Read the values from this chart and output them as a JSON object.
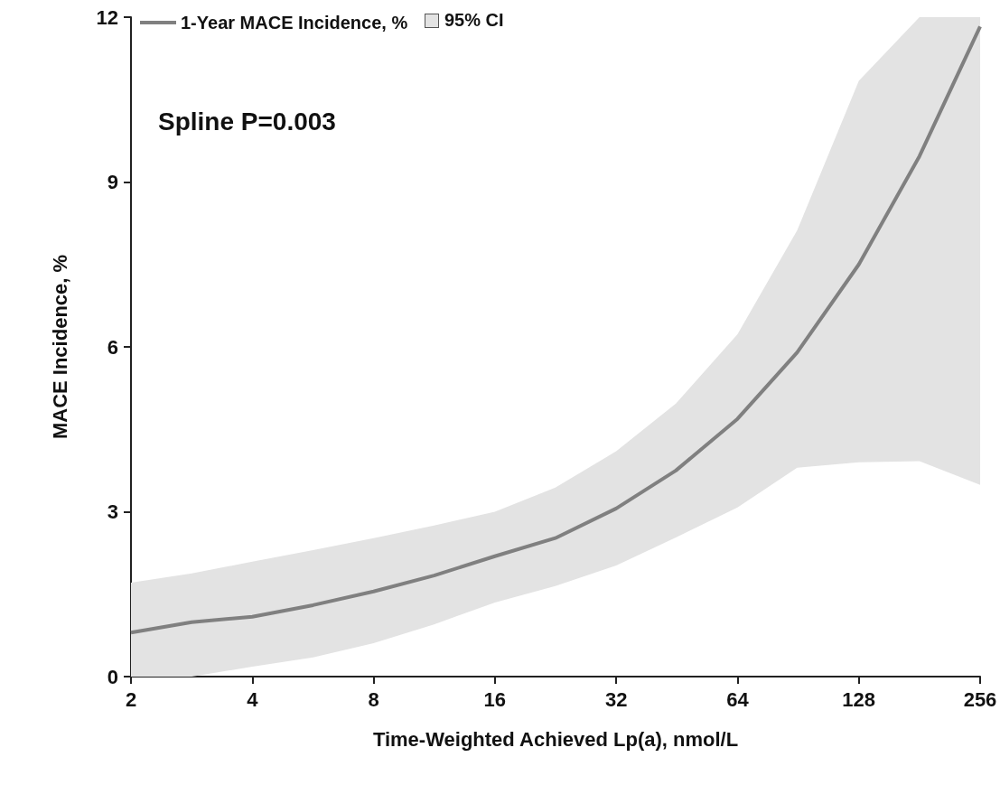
{
  "chart_data": {
    "type": "line",
    "xlabel": "Time-Weighted Achieved Lp(a), nmol/L",
    "ylabel": "MACE Incidence, %",
    "log": "x",
    "xlim": [
      2,
      256
    ],
    "xticks": [
      2,
      4,
      8,
      16,
      32,
      64,
      128,
      256
    ],
    "ylim": [
      0,
      12
    ],
    "yticks": [
      0,
      3,
      6,
      9,
      12
    ],
    "annotations": [
      "Spline P=0.003",
      "95% CI"
    ],
    "legend": "top left",
    "grid": false,
    "marker": "none",
    "line_style": "solid",
    "series": [
      {
        "name": "1-Year MACE Incidence, %",
        "color": "#808080",
        "x": [
          2,
          2.83,
          4,
          5.66,
          8,
          11.3,
          16,
          22.6,
          32,
          45,
          64,
          90,
          128,
          181,
          256
        ],
        "values": [
          0.8,
          0.99,
          1.09,
          1.3,
          1.55,
          1.84,
          2.19,
          2.52,
          3.06,
          3.75,
          4.69,
          5.9,
          7.5,
          9.47,
          11.83
        ],
        "lower": [
          0,
          0,
          0.18,
          0.35,
          0.61,
          0.95,
          1.35,
          1.65,
          2.02,
          2.53,
          3.08,
          3.8,
          3.9,
          3.92,
          3.49
        ],
        "upper": [
          1.71,
          1.88,
          2.09,
          2.3,
          2.52,
          2.75,
          3.0,
          3.44,
          4.1,
          4.97,
          6.23,
          8.12,
          10.84,
          12,
          12
        ]
      }
    ]
  }
}
